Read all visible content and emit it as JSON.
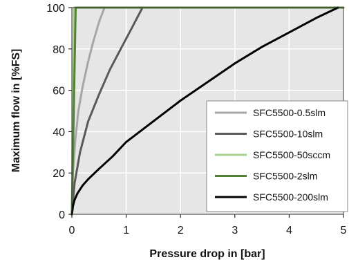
{
  "chart_data": {
    "type": "line",
    "title": "",
    "xlabel": "Pressure drop in [bar]",
    "ylabel": "Maximum flow in  [%FS]",
    "xlim": [
      0,
      5
    ],
    "ylim": [
      0,
      100
    ],
    "xticks": [
      "0",
      "1",
      "2",
      "3",
      "4",
      "5"
    ],
    "yticks": [
      "0",
      "20",
      "40",
      "60",
      "80",
      "100"
    ],
    "grid": true,
    "plot_background": "#e6e6e6",
    "legend_position": "lower-right",
    "series": [
      {
        "name": "SFC5500-0.5slm",
        "color": "#a6a6a6",
        "x": [
          0,
          0.02,
          0.06,
          0.12,
          0.2,
          0.3,
          0.4,
          0.5,
          0.6,
          5.0
        ],
        "y": [
          0,
          20,
          35,
          50,
          62,
          74,
          84,
          93,
          100,
          100
        ]
      },
      {
        "name": "SFC5500-10slm",
        "color": "#595959",
        "x": [
          0,
          0.05,
          0.15,
          0.3,
          0.5,
          0.7,
          0.9,
          1.1,
          1.3,
          5.0
        ],
        "y": [
          0,
          15,
          30,
          45,
          58,
          70,
          80,
          90,
          100,
          100
        ]
      },
      {
        "name": "SFC5500-50sccm",
        "color": "#a9d18e",
        "x": [
          0,
          0.02,
          0.04,
          5.0
        ],
        "y": [
          0,
          60,
          100,
          100
        ]
      },
      {
        "name": "SFC5500-2slm",
        "color": "#548235",
        "x": [
          0,
          0.07,
          0.1,
          5.0
        ],
        "y": [
          0,
          100,
          100,
          100
        ]
      },
      {
        "name": "SFC5500-200slm",
        "color": "#000000",
        "x": [
          0,
          0.02,
          0.05,
          0.1,
          0.2,
          0.3,
          0.5,
          0.75,
          1.0,
          1.5,
          2.0,
          2.5,
          3.0,
          3.5,
          4.0,
          4.5,
          4.9
        ],
        "y": [
          0,
          4,
          7,
          10,
          14,
          17,
          22,
          28,
          35,
          45,
          55,
          64,
          73,
          81,
          88,
          95,
          100
        ]
      }
    ]
  }
}
